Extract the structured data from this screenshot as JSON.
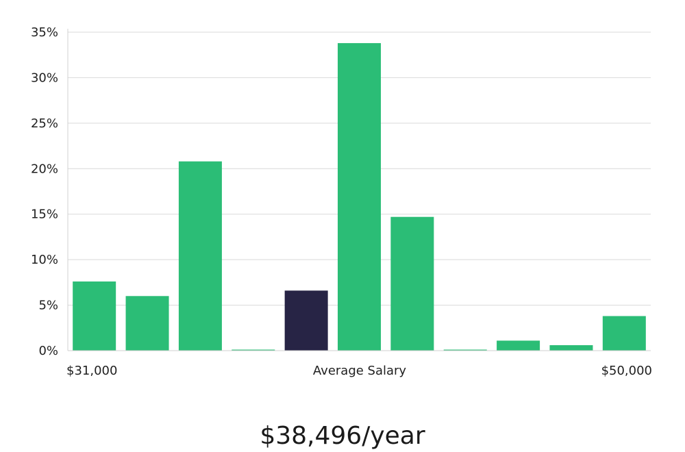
{
  "chart_data": {
    "type": "bar",
    "ylim": [
      0,
      35
    ],
    "yticks": [
      "0%",
      "5%",
      "10%",
      "15%",
      "20%",
      "25%",
      "30%",
      "35%"
    ],
    "ytick_values": [
      0,
      5,
      10,
      15,
      20,
      25,
      30,
      35
    ],
    "values": [
      7.6,
      6.0,
      20.8,
      0.1,
      6.6,
      33.8,
      14.7,
      0.1,
      1.1,
      0.6,
      3.8
    ],
    "highlight_index": 4,
    "colors": {
      "bar": "#2bbd76",
      "highlight": "#272445"
    },
    "x_labels": {
      "left": "$31,000",
      "center": "Average Salary",
      "right": "$50,000"
    },
    "grid": true
  },
  "salary_display": "$38,496/year"
}
